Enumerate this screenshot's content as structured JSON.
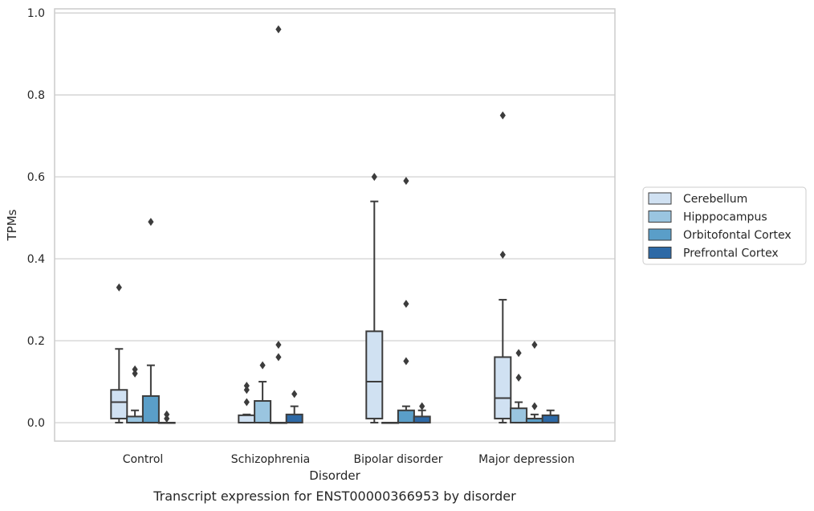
{
  "caption": "Transcript expression for ENST00000366953 by disorder",
  "chart_data": {
    "type": "box",
    "xlabel": "Disorder",
    "ylabel": "TPMs",
    "ylim": [
      -0.045,
      1.01
    ],
    "yticks": [
      "0.0",
      "0.2",
      "0.4",
      "0.6",
      "0.8",
      "1.0"
    ],
    "grid": true,
    "legend_position": "right",
    "categories": [
      "Control",
      "Schizophrenia",
      "Bipolar disorder",
      "Major depression"
    ],
    "series": [
      {
        "name": "Cerebellum",
        "color": "#d0e1f2",
        "boxes": [
          {
            "whislo": 0.0,
            "q1": 0.01,
            "med": 0.05,
            "q3": 0.08,
            "whishi": 0.18,
            "fliers": [
              0.33
            ]
          },
          {
            "whislo": 0.0,
            "q1": 0.0,
            "med": 0.0,
            "q3": 0.018,
            "whishi": 0.02,
            "fliers": [
              0.05,
              0.08,
              0.09
            ]
          },
          {
            "whislo": 0.0,
            "q1": 0.01,
            "med": 0.1,
            "q3": 0.223,
            "whishi": 0.54,
            "fliers": [
              0.6
            ]
          },
          {
            "whislo": 0.0,
            "q1": 0.01,
            "med": 0.06,
            "q3": 0.16,
            "whishi": 0.3,
            "fliers": [
              0.41,
              0.75
            ]
          }
        ]
      },
      {
        "name": "Hipppocampus",
        "color": "#9ac5e0",
        "boxes": [
          {
            "whislo": 0.0,
            "q1": 0.0,
            "med": 0.0,
            "q3": 0.015,
            "whishi": 0.03,
            "fliers": [
              0.12,
              0.13
            ]
          },
          {
            "whislo": 0.0,
            "q1": 0.0,
            "med": 0.0,
            "q3": 0.053,
            "whishi": 0.1,
            "fliers": [
              0.14
            ]
          },
          {
            "whislo": 0.0,
            "q1": 0.0,
            "med": 0.0,
            "q3": 0.0,
            "whishi": 0.0,
            "fliers": []
          },
          {
            "whislo": 0.0,
            "q1": 0.0,
            "med": 0.0,
            "q3": 0.035,
            "whishi": 0.05,
            "fliers": [
              0.11,
              0.17
            ]
          }
        ]
      },
      {
        "name": "Orbitofontal Cortex",
        "color": "#5a9ec8",
        "boxes": [
          {
            "whislo": 0.0,
            "q1": 0.0,
            "med": 0.0,
            "q3": 0.065,
            "whishi": 0.14,
            "fliers": [
              0.49
            ]
          },
          {
            "whislo": 0.0,
            "q1": 0.0,
            "med": 0.0,
            "q3": 0.0,
            "whishi": 0.0,
            "fliers": [
              0.16,
              0.19,
              0.96
            ]
          },
          {
            "whislo": 0.0,
            "q1": 0.0,
            "med": 0.0,
            "q3": 0.03,
            "whishi": 0.04,
            "fliers": [
              0.15,
              0.29,
              0.59
            ]
          },
          {
            "whislo": 0.0,
            "q1": 0.0,
            "med": 0.0,
            "q3": 0.01,
            "whishi": 0.02,
            "fliers": [
              0.04,
              0.19
            ]
          }
        ]
      },
      {
        "name": "Prefrontal Cortex",
        "color": "#2d69a6",
        "boxes": [
          {
            "whislo": 0.0,
            "q1": 0.0,
            "med": 0.0,
            "q3": 0.0,
            "whishi": 0.0,
            "fliers": [
              0.01,
              0.02
            ]
          },
          {
            "whislo": 0.0,
            "q1": 0.0,
            "med": 0.0,
            "q3": 0.02,
            "whishi": 0.04,
            "fliers": [
              0.07
            ]
          },
          {
            "whislo": 0.0,
            "q1": 0.0,
            "med": 0.0,
            "q3": 0.015,
            "whishi": 0.03,
            "fliers": [
              0.04
            ]
          },
          {
            "whislo": 0.0,
            "q1": 0.0,
            "med": 0.0,
            "q3": 0.018,
            "whishi": 0.03,
            "fliers": []
          }
        ]
      }
    ]
  }
}
